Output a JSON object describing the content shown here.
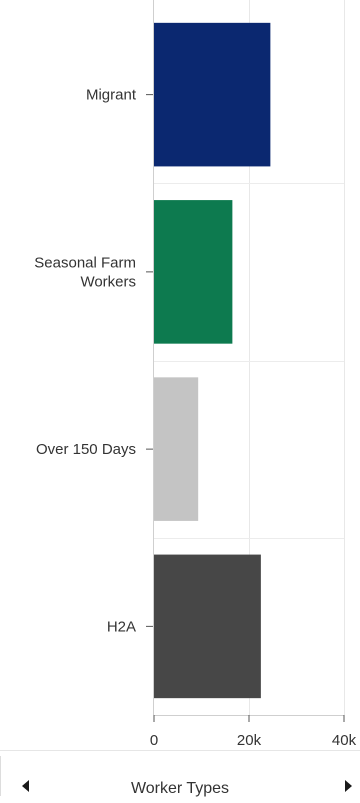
{
  "chart_data": {
    "type": "bar",
    "orientation": "horizontal",
    "categories": [
      "Migrant",
      "Seasonal Farm Workers",
      "Over 150 Days",
      "H2A"
    ],
    "category_lines": [
      [
        "Migrant"
      ],
      [
        "Seasonal Farm",
        "Workers"
      ],
      [
        "Over 150 Days"
      ],
      [
        "H2A"
      ]
    ],
    "values": [
      24500,
      16500,
      9300,
      22500
    ],
    "colors": [
      "#0b2870",
      "#0d7a4f",
      "#c4c4c4",
      "#474747"
    ],
    "xlim": [
      0,
      40000
    ],
    "xticks": [
      0,
      20000,
      40000
    ],
    "xtick_labels": [
      "0",
      "20k",
      "40k"
    ],
    "grid": true,
    "title": "",
    "xlabel": "",
    "ylabel": ""
  },
  "footer": {
    "title": "Worker Types",
    "prev_icon": "triangle-left-icon",
    "next_icon": "triangle-right-icon"
  }
}
